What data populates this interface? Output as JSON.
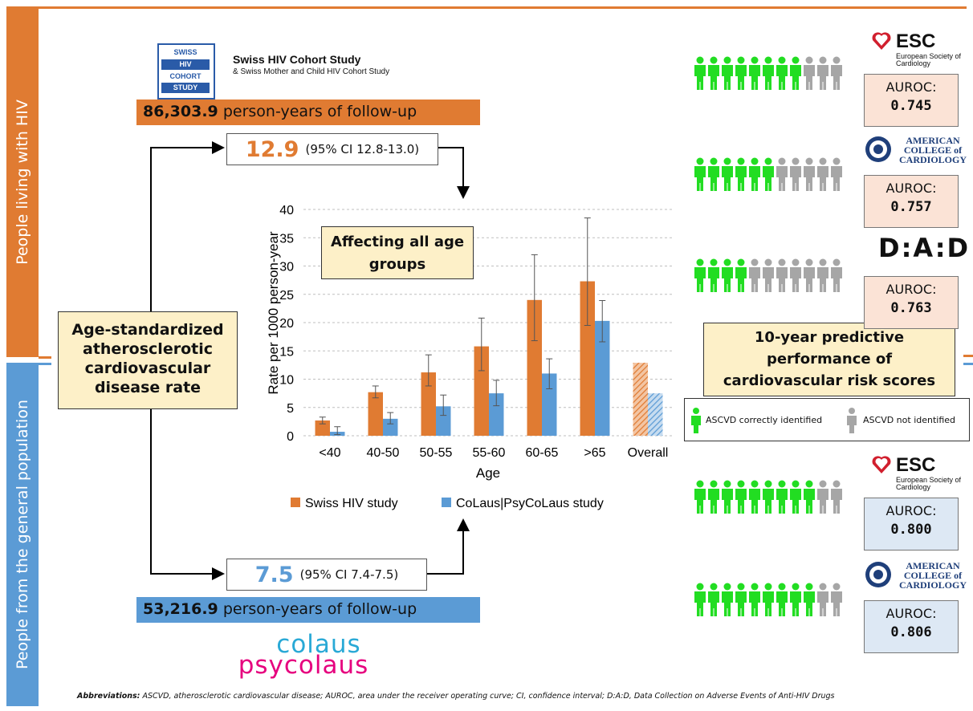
{
  "side_labels": {
    "top": "People living with HIV",
    "bottom": "People from the general population"
  },
  "shcs": {
    "logo_lines": [
      "SWISS",
      "HIV",
      "COHORT",
      "STUDY"
    ],
    "title": "Swiss HIV Cohort Study",
    "subtitle": "& Swiss Mother and Child HIV Cohort Study"
  },
  "followup_hiv": {
    "value": "86,303.9",
    "text": "person-years of follow-up"
  },
  "followup_gen": {
    "value": "53,216.9",
    "text": "person-years of follow-up"
  },
  "rate_hiv": {
    "value": "12.9",
    "ci": "(95% CI 12.8-13.0)"
  },
  "rate_gen": {
    "value": "7.5",
    "ci": "(95% CI 7.4-7.5)"
  },
  "center_label": "Age-standardized atherosclerotic cardiovascular disease rate",
  "callout": "Affecting all age groups",
  "colaus_logo": {
    "line1": "colaus",
    "line2": "psycolaus"
  },
  "right_panel": {
    "title": "10-year predictive performance of cardiovascular risk scores",
    "legend_correct": "ASCVD correctly identified",
    "legend_not": "ASCVD not identified",
    "hiv_scores": [
      {
        "org": "ESC",
        "org_sub": "European Society of Cardiology",
        "auroc_label": "AUROC:",
        "auroc": "0.745",
        "correct": 8,
        "total": 11
      },
      {
        "org": "AMERICAN COLLEGE of CARDIOLOGY",
        "org_sub": "",
        "auroc_label": "AUROC:",
        "auroc": "0.757",
        "correct": 6,
        "total": 11
      },
      {
        "org": "D:A:D",
        "org_sub": "",
        "auroc_label": "AUROC:",
        "auroc": "0.763",
        "correct": 4,
        "total": 11
      }
    ],
    "gen_scores": [
      {
        "org": "ESC",
        "org_sub": "European Society of Cardiology",
        "auroc_label": "AUROC:",
        "auroc": "0.800",
        "correct": 9,
        "total": 11
      },
      {
        "org": "AMERICAN COLLEGE of CARDIOLOGY",
        "org_sub": "",
        "auroc_label": "AUROC:",
        "auroc": "0.806",
        "correct": 9,
        "total": 11
      }
    ]
  },
  "colors": {
    "orange": "#e07b32",
    "blue": "#5b9bd5",
    "green": "#22dd22",
    "grey": "#a6a6a6",
    "cream": "#fdf0c8",
    "auroc_hiv_bg": "#fbe3d6",
    "auroc_gen_bg": "#dde8f4",
    "esc_red": "#d11f2e"
  },
  "chart_data": {
    "type": "bar",
    "xlabel": "Age",
    "ylabel": "Rate per 1000 person-year",
    "ylim": [
      0,
      40
    ],
    "yticks": [
      0,
      5,
      10,
      15,
      20,
      25,
      30,
      35,
      40
    ],
    "grid": true,
    "categories": [
      "<40",
      "40-50",
      "50-55",
      "55-60",
      "60-65",
      ">65",
      "Overall"
    ],
    "series": [
      {
        "name": "Swiss HIV study",
        "color": "#e07b32",
        "values": [
          2.7,
          7.7,
          11.2,
          15.8,
          24.0,
          27.3,
          12.9
        ],
        "err_low": [
          2.1,
          6.7,
          8.8,
          11.5,
          16.8,
          19.5,
          null
        ],
        "err_high": [
          3.3,
          8.8,
          14.3,
          20.8,
          32.0,
          38.5,
          null
        ]
      },
      {
        "name": "CoLaus|PsyCoLaus study",
        "color": "#5b9bd5",
        "values": [
          0.7,
          3.0,
          5.2,
          7.5,
          11.0,
          20.3,
          7.5
        ],
        "err_low": [
          0.2,
          2.1,
          3.6,
          5.3,
          8.3,
          16.6,
          null
        ],
        "err_high": [
          1.6,
          4.1,
          7.2,
          9.8,
          13.6,
          23.9,
          null
        ]
      }
    ],
    "legend_position": "bottom"
  },
  "footer": {
    "lead": "Abbreviations:",
    "text": "ASCVD, atherosclerotic cardiovascular disease; AUROC, area under the receiver operating curve; CI, confidence interval; D:A:D, Data Collection on Adverse Events of Anti-HIV Drugs"
  }
}
